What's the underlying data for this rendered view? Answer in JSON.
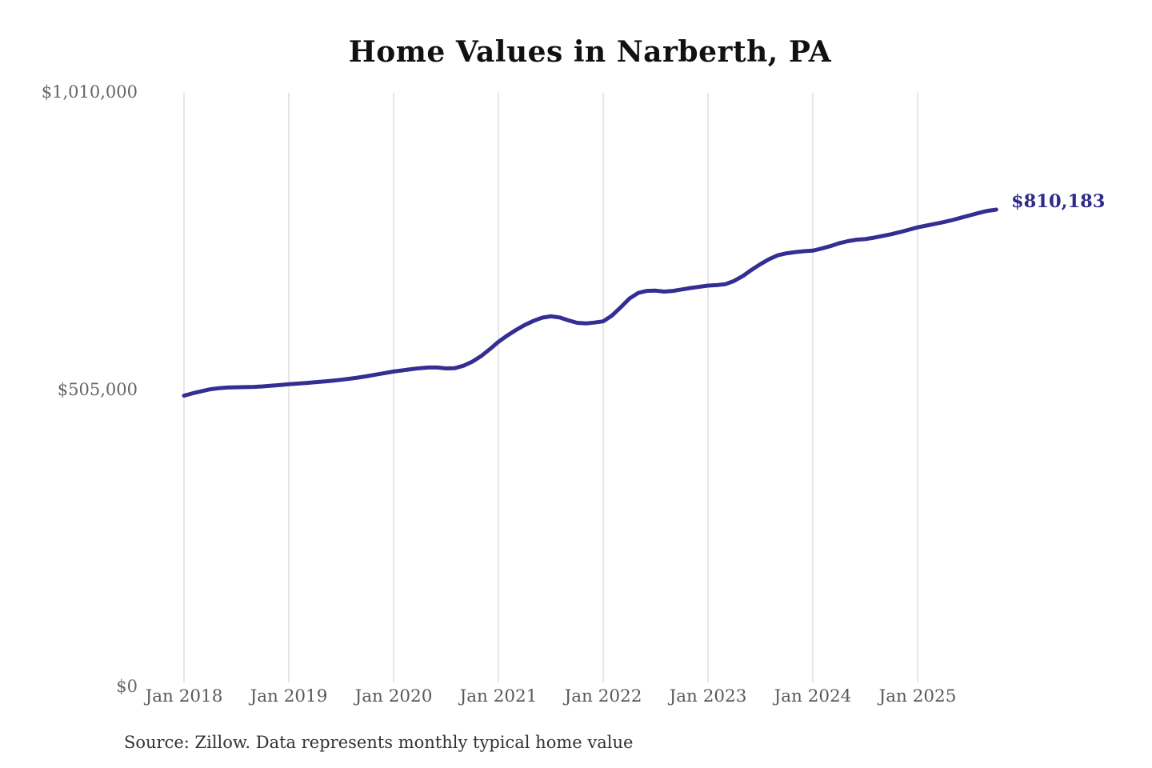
{
  "title": "Home Values in Narberth, PA",
  "annotation": {
    "end_value_label": "$810,183"
  },
  "source_note": "Source: Zillow. Data represents monthly typical home value",
  "colors": {
    "line": "#342e93",
    "end_label": "#2f2b8a",
    "grid": "#cccccc",
    "title": "#111111",
    "axis_labels": "#666666",
    "source": "#333333",
    "background": "#ffffff"
  },
  "chart_data": {
    "type": "line",
    "title": "Home Values in Narberth, PA",
    "xlabel": "",
    "ylabel": "",
    "ylim": [
      0,
      1010000
    ],
    "grid": "vertical-gridlines-only",
    "legend": "none",
    "frequency": "monthly",
    "x_start": "Jan 2018",
    "x_end": "Oct 2025",
    "x_ticks": [
      "Jan 2018",
      "Jan 2019",
      "Jan 2020",
      "Jan 2021",
      "Jan 2022",
      "Jan 2023",
      "Jan 2024",
      "Jan 2025"
    ],
    "y_ticks": [
      {
        "label": "$0",
        "value": 0
      },
      {
        "label": "$505,000",
        "value": 505000
      },
      {
        "label": "$1,010,000",
        "value": 1010000
      }
    ],
    "end_value": 810183,
    "series": [
      {
        "name": "Typical home value",
        "values": [
          494000,
          498000,
          501500,
          504800,
          506800,
          507800,
          508200,
          508500,
          509000,
          509800,
          511000,
          512200,
          513400,
          514500,
          515600,
          516800,
          518000,
          519400,
          521000,
          522800,
          524900,
          527300,
          529900,
          532500,
          535000,
          537000,
          539000,
          540700,
          541800,
          541800,
          540400,
          540800,
          544800,
          551800,
          561000,
          572800,
          585500,
          596000,
          605500,
          614000,
          621000,
          626500,
          628800,
          627000,
          622000,
          617800,
          616800,
          618200,
          620300,
          630000,
          644000,
          659000,
          668500,
          672000,
          672500,
          670800,
          672000,
          674500,
          677000,
          679000,
          681000,
          681800,
          683500,
          689000,
          697500,
          708000,
          717500,
          726000,
          732500,
          736000,
          738000,
          739500,
          740500,
          744000,
          748000,
          753000,
          756500,
          759000,
          760000,
          762500,
          765500,
          768500,
          772000,
          776000,
          780000,
          783000,
          786000,
          789000,
          792500,
          796500,
          800500,
          804500,
          808000,
          810183
        ]
      }
    ]
  }
}
